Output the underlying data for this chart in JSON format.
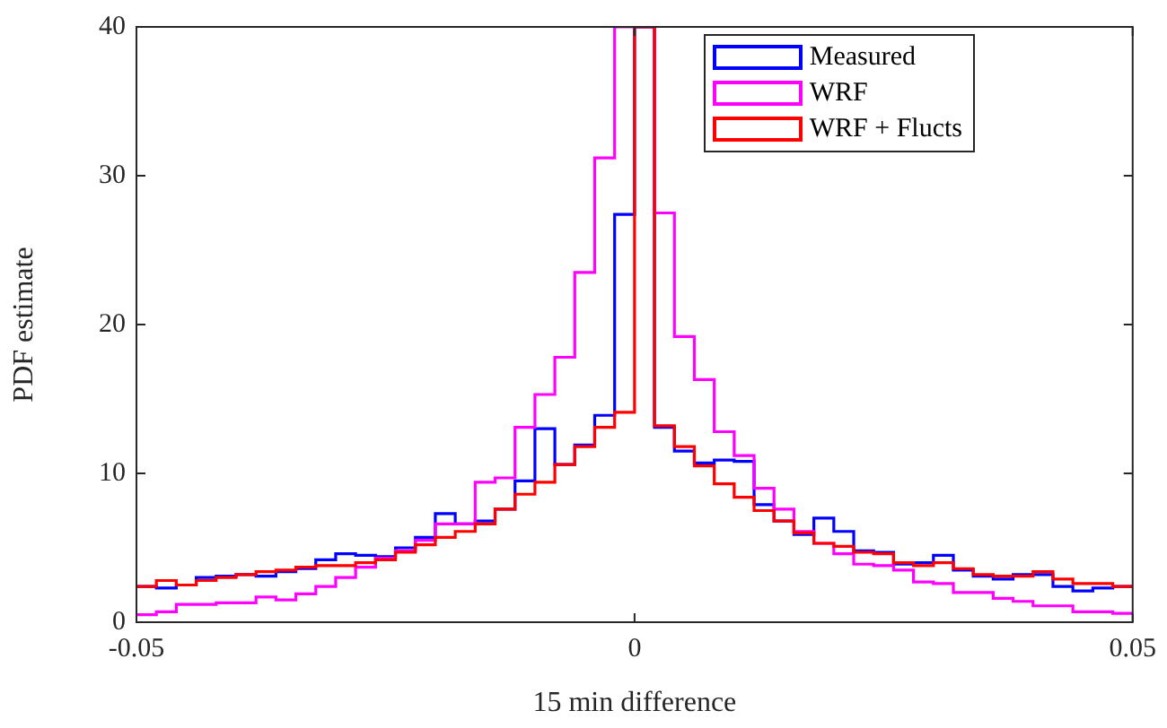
{
  "chart_data": {
    "type": "histogram",
    "xlabel": "15 min difference",
    "ylabel": "PDF estimate",
    "bins": [
      -0.05,
      -0.048,
      -0.046,
      -0.044,
      -0.042,
      -0.04,
      -0.038,
      -0.036,
      -0.034,
      -0.032,
      -0.03,
      -0.028,
      -0.026,
      -0.024,
      -0.022,
      -0.02,
      -0.018,
      -0.016,
      -0.014,
      -0.012,
      -0.01,
      -0.008,
      -0.006,
      -0.004,
      -0.002,
      0,
      0.002,
      0.004,
      0.006,
      0.008,
      0.01,
      0.012,
      0.014,
      0.016,
      0.018,
      0.02,
      0.022,
      0.024,
      0.026,
      0.028,
      0.03,
      0.032,
      0.034,
      0.036,
      0.038,
      0.04,
      0.042,
      0.044,
      0.046,
      0.048,
      0.05
    ],
    "series": [
      {
        "name": "Measured",
        "color": "#0000ff",
        "values": [
          2.4,
          2.3,
          2.5,
          3.0,
          3.1,
          3.2,
          3.1,
          3.4,
          3.6,
          4.2,
          4.6,
          4.5,
          4.4,
          5.0,
          5.7,
          7.3,
          6.6,
          6.8,
          7.6,
          9.5,
          13.0,
          10.6,
          11.9,
          13.9,
          27.4,
          40,
          13.1,
          11.5,
          10.7,
          10.9,
          10.8,
          7.9,
          6.8,
          5.9,
          7.0,
          6.1,
          4.8,
          4.7,
          3.9,
          4.0,
          4.5,
          3.5,
          3.1,
          2.9,
          3.2,
          3.2,
          2.4,
          2.1,
          2.3,
          2.4
        ]
      },
      {
        "name": "WRF",
        "color": "#ff00ff",
        "values": [
          0.5,
          0.7,
          1.2,
          1.2,
          1.3,
          1.3,
          1.7,
          1.5,
          1.9,
          2.4,
          3.0,
          3.7,
          4.3,
          4.8,
          5.5,
          6.6,
          6.6,
          9.4,
          9.7,
          13.1,
          15.3,
          17.8,
          23.5,
          31.2,
          40,
          40,
          27.5,
          19.2,
          16.3,
          12.8,
          11.2,
          9.0,
          7.6,
          6.1,
          5.3,
          4.6,
          3.9,
          3.8,
          3.5,
          2.7,
          2.6,
          2.0,
          2.0,
          1.6,
          1.4,
          1.1,
          1.1,
          0.7,
          0.7,
          0.6
        ]
      },
      {
        "name": "WRF + Flucts",
        "color": "#ff0000",
        "values": [
          2.4,
          2.8,
          2.5,
          2.8,
          3.0,
          3.2,
          3.4,
          3.5,
          3.7,
          3.8,
          3.8,
          4.0,
          4.2,
          4.7,
          5.2,
          5.7,
          6.1,
          6.6,
          7.6,
          8.6,
          9.4,
          10.6,
          11.8,
          13.1,
          14.1,
          40,
          13.2,
          11.8,
          10.5,
          9.3,
          8.4,
          7.5,
          6.8,
          6.0,
          5.3,
          5.1,
          4.7,
          4.6,
          4.0,
          3.8,
          4.0,
          3.6,
          3.2,
          3.1,
          3.1,
          3.4,
          2.9,
          2.6,
          2.6,
          2.4
        ]
      }
    ],
    "xlim": [
      -0.05,
      0.05
    ],
    "xticks": [
      -0.05,
      0,
      0.05
    ],
    "ylim": [
      0,
      40
    ],
    "yticks": [
      0,
      10,
      20,
      30,
      40
    ],
    "legend": "top right"
  }
}
